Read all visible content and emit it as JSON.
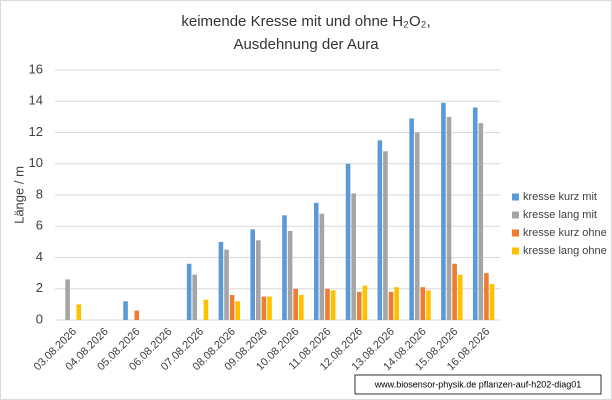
{
  "chart_data": {
    "type": "bar",
    "title": [
      "keimende Kresse mit und ohne H₂O₂,",
      "Ausdehnung der Aura"
    ],
    "y_label": "Länge / m",
    "annotation": "www.biosensor-physik.de   pflanzen-auf-h202-diag01",
    "categories": [
      "03.08.2026",
      "04.08.2026",
      "05.08.2026",
      "06.08.2026",
      "07.08.2026",
      "08.08.2026",
      "09.08.2026",
      "10.08.2026",
      "11.08.2026",
      "12.08.2026",
      "13.08.2026",
      "14.08.2026",
      "15.08.2026",
      "16.08.2026"
    ],
    "series": [
      {
        "name": "kresse kurz mit",
        "color": "#5b9bd5",
        "values": [
          null,
          null,
          1.2,
          null,
          3.6,
          5.0,
          5.8,
          6.7,
          7.5,
          10.0,
          11.5,
          12.9,
          13.9,
          13.6
        ]
      },
      {
        "name": "kresse lang mit",
        "color": "#a5a5a5",
        "values": [
          2.6,
          null,
          null,
          null,
          2.9,
          4.5,
          5.1,
          5.7,
          6.8,
          8.1,
          10.8,
          12.0,
          13.0,
          12.6
        ]
      },
      {
        "name": "kresse kurz ohne",
        "color": "#ed7d31",
        "values": [
          null,
          null,
          0.6,
          null,
          null,
          1.6,
          1.5,
          2.0,
          2.0,
          1.8,
          1.8,
          2.1,
          3.6,
          3.0
        ]
      },
      {
        "name": "kresse lang ohne",
        "color": "#ffc000",
        "values": [
          1.0,
          null,
          null,
          null,
          1.3,
          1.2,
          1.5,
          1.6,
          1.9,
          2.2,
          2.1,
          1.9,
          2.9,
          2.3
        ]
      }
    ],
    "ylim": [
      0,
      16
    ],
    "yticks": [
      0,
      2,
      4,
      6,
      8,
      10,
      12,
      14,
      16
    ],
    "grid": true,
    "legend": "right"
  }
}
